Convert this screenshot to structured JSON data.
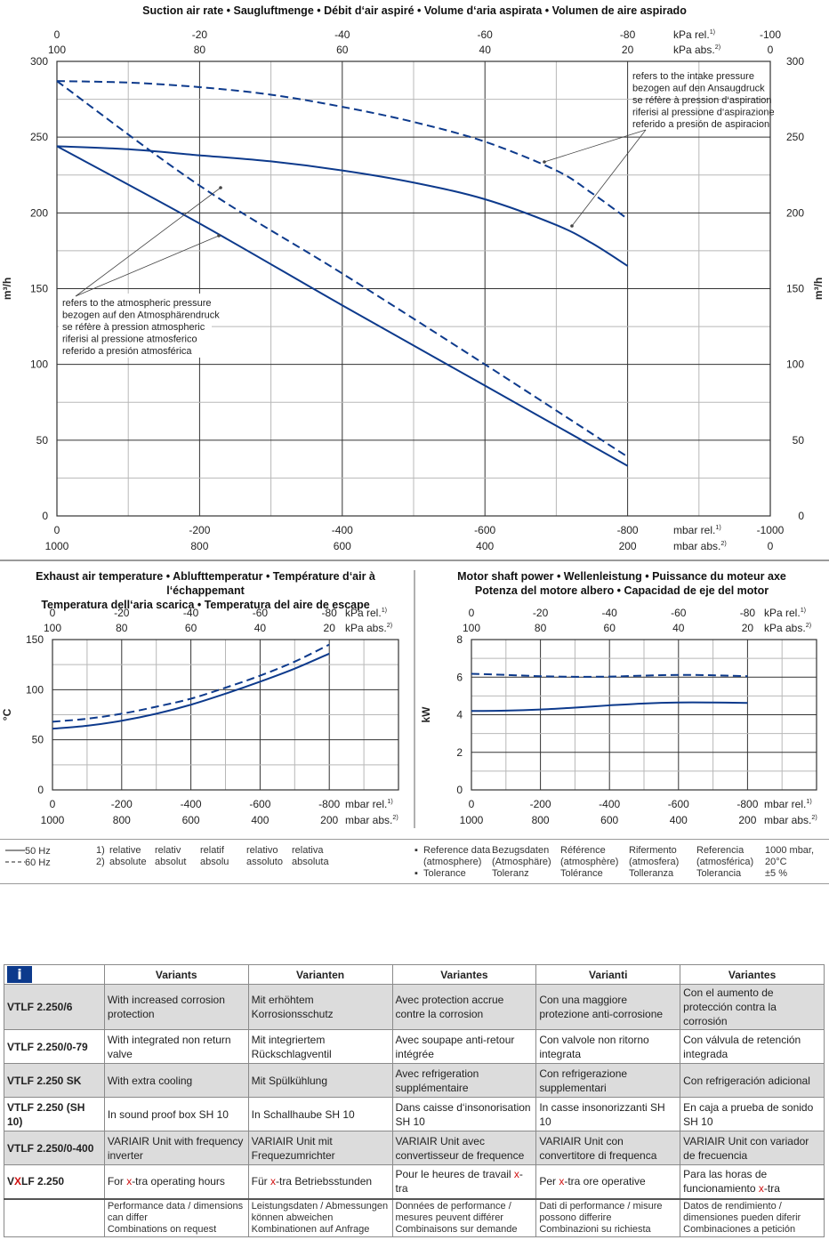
{
  "colors": {
    "line": "#0d3a8c",
    "grid_major": "#333333",
    "grid_minor": "#b5b5b5",
    "info_bg": "#0d3a8c",
    "xtra": "#d01010"
  },
  "chart_data": [
    {
      "id": "suction",
      "type": "line",
      "title": "Suction air rate • Saugluftmenge • Débit d‘air aspiré • Volume d‘aria aspirata • Volumen de aire aspirado",
      "ylabel": "m³/h",
      "ylim": [
        0,
        300
      ],
      "yticks": [
        0,
        50,
        100,
        150,
        200,
        250,
        300
      ],
      "xlim": [
        0,
        -1000
      ],
      "x_unit_rel": "mbar rel.",
      "x_unit_abs": "mbar abs.",
      "x_rel_ticks": [
        "0",
        "-200",
        "-400",
        "-600",
        "-800",
        "-1000"
      ],
      "x_abs_ticks": [
        "1000",
        "800",
        "600",
        "400",
        "200",
        "0"
      ],
      "top_unit_rel": "kPa rel.",
      "top_unit_abs": "kPa abs.",
      "top_rel_ticks": [
        "0",
        "-20",
        "-40",
        "-60",
        "-80",
        "-100"
      ],
      "top_abs_ticks": [
        "100",
        "80",
        "60",
        "40",
        "20",
        "0"
      ],
      "grid": true,
      "series": [
        {
          "name": "50 Hz (intake pressure)",
          "style": "solid",
          "x": [
            0,
            -100,
            -200,
            -300,
            -400,
            -500,
            -600,
            -700,
            -750,
            -800
          ],
          "y": [
            244,
            242,
            238,
            234,
            228,
            220,
            209,
            192,
            180,
            165
          ]
        },
        {
          "name": "60 Hz (intake pressure)",
          "style": "dashed",
          "x": [
            0,
            -100,
            -200,
            -300,
            -400,
            -500,
            -600,
            -700,
            -750,
            -800
          ],
          "y": [
            287,
            286,
            283,
            278,
            270,
            260,
            247,
            228,
            213,
            196
          ]
        },
        {
          "name": "50 Hz (atmospheric pressure)",
          "style": "solid",
          "x": [
            0,
            -200,
            -400,
            -600,
            -800
          ],
          "y": [
            244,
            193,
            139,
            86,
            33
          ]
        },
        {
          "name": "60 Hz (atmospheric pressure)",
          "style": "dashed",
          "x": [
            0,
            -200,
            -400,
            -600,
            -800
          ],
          "y": [
            287,
            218,
            160,
            100,
            39
          ]
        }
      ],
      "annotations": [
        {
          "id": "intake",
          "lines": [
            "refers to the intake pressure",
            "bezogen auf den Ansaugdruck",
            "se réfère à pression d‘aspiration",
            "riferisi al pressione d‘aspirazione",
            "referido a presión de aspiracion"
          ]
        },
        {
          "id": "atmos",
          "lines": [
            "refers to the atmospheric pressure",
            "bezogen auf den Atmosphärendruck",
            "se réfère à pression atmospheric",
            "riferisi al pressione atmosferico",
            "referido a presión atmosférica"
          ]
        }
      ]
    },
    {
      "id": "temperature",
      "type": "line",
      "title_lines": [
        "Exhaust air temperature • Ablufttemperatur • Température d‘air à l‘échappemant",
        "Temperatura dell‘aria scarica • Temperatura del aire de escape"
      ],
      "ylabel": "°C",
      "ylim": [
        0,
        150
      ],
      "yticks": [
        0,
        50,
        100,
        150
      ],
      "xlim": [
        0,
        -1000
      ],
      "x_unit_rel": "mbar rel.",
      "x_unit_abs": "mbar abs.",
      "x_rel_ticks": [
        "0",
        "-200",
        "-400",
        "-600",
        "-800"
      ],
      "x_abs_ticks": [
        "1000",
        "800",
        "600",
        "400",
        "200"
      ],
      "top_unit_rel": "kPa rel.",
      "top_unit_abs": "kPa abs.",
      "top_rel_ticks": [
        "0",
        "-20",
        "-40",
        "-60",
        "-80"
      ],
      "top_abs_ticks": [
        "100",
        "80",
        "60",
        "40",
        "20"
      ],
      "grid": true,
      "series": [
        {
          "name": "50 Hz",
          "style": "solid",
          "x": [
            0,
            -100,
            -200,
            -300,
            -400,
            -500,
            -600,
            -700,
            -800
          ],
          "y": [
            61,
            64,
            69,
            76,
            85,
            96,
            108,
            121,
            136
          ]
        },
        {
          "name": "60 Hz",
          "style": "dashed",
          "x": [
            0,
            -100,
            -200,
            -300,
            -400,
            -500,
            -600,
            -700,
            -800
          ],
          "y": [
            68,
            71,
            76,
            83,
            91,
            102,
            114,
            128,
            145
          ]
        }
      ]
    },
    {
      "id": "power",
      "type": "line",
      "title_lines": [
        "Motor shaft power • Wellenleistung • Puissance du moteur axe",
        "Potenza del motore albero • Capacidad de eje del motor"
      ],
      "ylabel": "kW",
      "ylim": [
        0,
        8
      ],
      "yticks": [
        0,
        2,
        4,
        6,
        8
      ],
      "xlim": [
        0,
        -1000
      ],
      "x_unit_rel": "mbar rel.",
      "x_unit_abs": "mbar abs.",
      "x_rel_ticks": [
        "0",
        "-200",
        "-400",
        "-600",
        "-800"
      ],
      "x_abs_ticks": [
        "1000",
        "800",
        "600",
        "400",
        "200"
      ],
      "top_unit_rel": "kPa rel.",
      "top_unit_abs": "kPa abs.",
      "top_rel_ticks": [
        "0",
        "-20",
        "-40",
        "-60",
        "-80"
      ],
      "top_abs_ticks": [
        "100",
        "80",
        "60",
        "40",
        "20"
      ],
      "grid": true,
      "series": [
        {
          "name": "50 Hz",
          "style": "solid",
          "x": [
            0,
            -100,
            -200,
            -300,
            -400,
            -500,
            -600,
            -700,
            -800
          ],
          "y": [
            4.2,
            4.22,
            4.28,
            4.38,
            4.5,
            4.6,
            4.65,
            4.65,
            4.63
          ]
        },
        {
          "name": "60 Hz",
          "style": "dashed",
          "x": [
            0,
            -100,
            -200,
            -300,
            -400,
            -500,
            -600,
            -700,
            -800
          ],
          "y": [
            6.18,
            6.12,
            6.05,
            6.02,
            6.03,
            6.08,
            6.12,
            6.1,
            6.05
          ]
        }
      ]
    }
  ],
  "legend": {
    "hz50": "50 Hz",
    "hz60": "60 Hz",
    "notes": [
      {
        "num": "1)",
        "terms": [
          "relative",
          "relativ",
          "relatif",
          "relativo",
          "relativa"
        ]
      },
      {
        "num": "2)",
        "terms": [
          "absolute",
          "absolut",
          "absolu",
          "assoluto",
          "absoluta"
        ]
      }
    ],
    "reference": {
      "row1": [
        "Reference data",
        "Bezugsdaten",
        "Référence",
        "Rifermento",
        "Referencia",
        "1000 mbar,"
      ],
      "row2": [
        "(atmosphere)",
        "(Atmosphäre)",
        "(atmosphère)",
        "(atmosfera)",
        "(atmosférica)",
        "20°C"
      ],
      "row3": [
        "Tolerance",
        "Toleranz",
        "Tolérance",
        "Tolleranza",
        "Tolerancia",
        "±5 %"
      ]
    }
  },
  "variants": {
    "info_icon": "i",
    "headers": [
      "Variants",
      "Varianten",
      "Variantes",
      "Varianti",
      "Variantes"
    ],
    "rows": [
      {
        "model": "VTLF 2.250/6",
        "cells": [
          "With increased corrosion protection",
          "Mit erhöhtem Korrosionsschutz",
          "Avec protection accrue contre la corrosion",
          "Con una maggiore protezione anti-corrosione",
          "Con el aumento de protección contra la corrosión"
        ]
      },
      {
        "model": "VTLF 2.250/0-79",
        "cells": [
          "With integrated non return valve",
          "Mit integriertem Rückschlagventil",
          "Avec soupape anti-retour intégrée",
          "Con valvole non ritorno integrata",
          "Con válvula de retención integrada"
        ]
      },
      {
        "model": "VTLF 2.250 SK",
        "cells": [
          "With extra cooling",
          "Mit Spülkühlung",
          "Avec refrigeration supplémentaire",
          "Con refrigerazione supplementari",
          "Con refrigeración adicional"
        ]
      },
      {
        "model": "VTLF 2.250 (SH 10)",
        "cells": [
          "In sound proof box SH 10",
          "In Schallhaube SH 10",
          "Dans caisse d‘insonorisation SH 10",
          "In casse insonorizzanti SH 10",
          "En caja a prueba de sonido SH 10"
        ]
      },
      {
        "model": "VTLF 2.250/0-400",
        "cells": [
          "VARIAIR Unit with frequency inverter",
          "VARIAIR Unit mit Frequezumrichter",
          "VARIAIR Unit avec convertisseur de frequence",
          "VARIAIR Unit con convertitore di frequenca",
          "VARIAIR Unit con variador de frecuencia"
        ]
      }
    ],
    "xtra_row": {
      "model_pre": "V",
      "model_x": "X",
      "model_post": "LF 2.250",
      "cells": [
        {
          "pre": "For ",
          "x": "x",
          "post": "-tra operating hours"
        },
        {
          "pre": "Für ",
          "x": "x",
          "post": "-tra Betriebsstunden"
        },
        {
          "pre": "Pour le heures de travail ",
          "x": "x",
          "post": "-tra"
        },
        {
          "pre": "Per ",
          "x": "x",
          "post": "-tra ore operative"
        },
        {
          "pre": "Para las horas de funcionamiento ",
          "x": "x",
          "post": "-tra"
        }
      ]
    },
    "notes": [
      [
        "Performance data / dimensions",
        "can differ",
        "Combinations on request"
      ],
      [
        "Leistungsdaten / Abmessungen",
        "können abweichen",
        "Kombinationen auf Anfrage"
      ],
      [
        "Données de performance /",
        "mesures peuvent différer",
        "Combinaisons sur demande"
      ],
      [
        "Dati di performance / misure",
        "possono differire",
        "Combinazioni su richiesta"
      ],
      [
        "Datos de rendimiento /",
        "dimensiones pueden diferir",
        "Combinaciones a petición"
      ]
    ]
  }
}
